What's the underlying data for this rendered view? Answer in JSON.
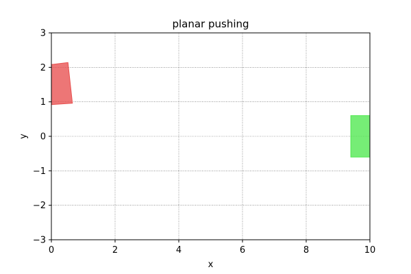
{
  "chart_data": {
    "type": "scatter",
    "title": "planar pushing",
    "xlabel": "x",
    "ylabel": "y",
    "xlim": [
      0,
      10
    ],
    "ylim": [
      -3,
      3
    ],
    "grid": true,
    "x_ticks": [
      0,
      2,
      4,
      6,
      8,
      10
    ],
    "y_ticks": [
      -3,
      -2,
      -1,
      0,
      1,
      2,
      3
    ],
    "x_tick_labels": [
      "0",
      "2",
      "4",
      "6",
      "8",
      "10"
    ],
    "y_tick_labels": [
      "−3",
      "−2",
      "−1",
      "0",
      "1",
      "2",
      "3"
    ],
    "shapes": [
      {
        "name": "pushed-object",
        "color": "#e8504f",
        "opacity": 0.78,
        "vertices": [
          [
            0.0,
            2.08
          ],
          [
            0.52,
            2.14
          ],
          [
            0.66,
            0.96
          ],
          [
            0.0,
            0.92
          ]
        ]
      },
      {
        "name": "goal-region",
        "color": "#4fe84f",
        "opacity": 0.78,
        "vertices": [
          [
            9.4,
            0.6
          ],
          [
            10.0,
            0.6
          ],
          [
            10.0,
            -0.6
          ],
          [
            9.4,
            -0.6
          ]
        ]
      }
    ]
  }
}
